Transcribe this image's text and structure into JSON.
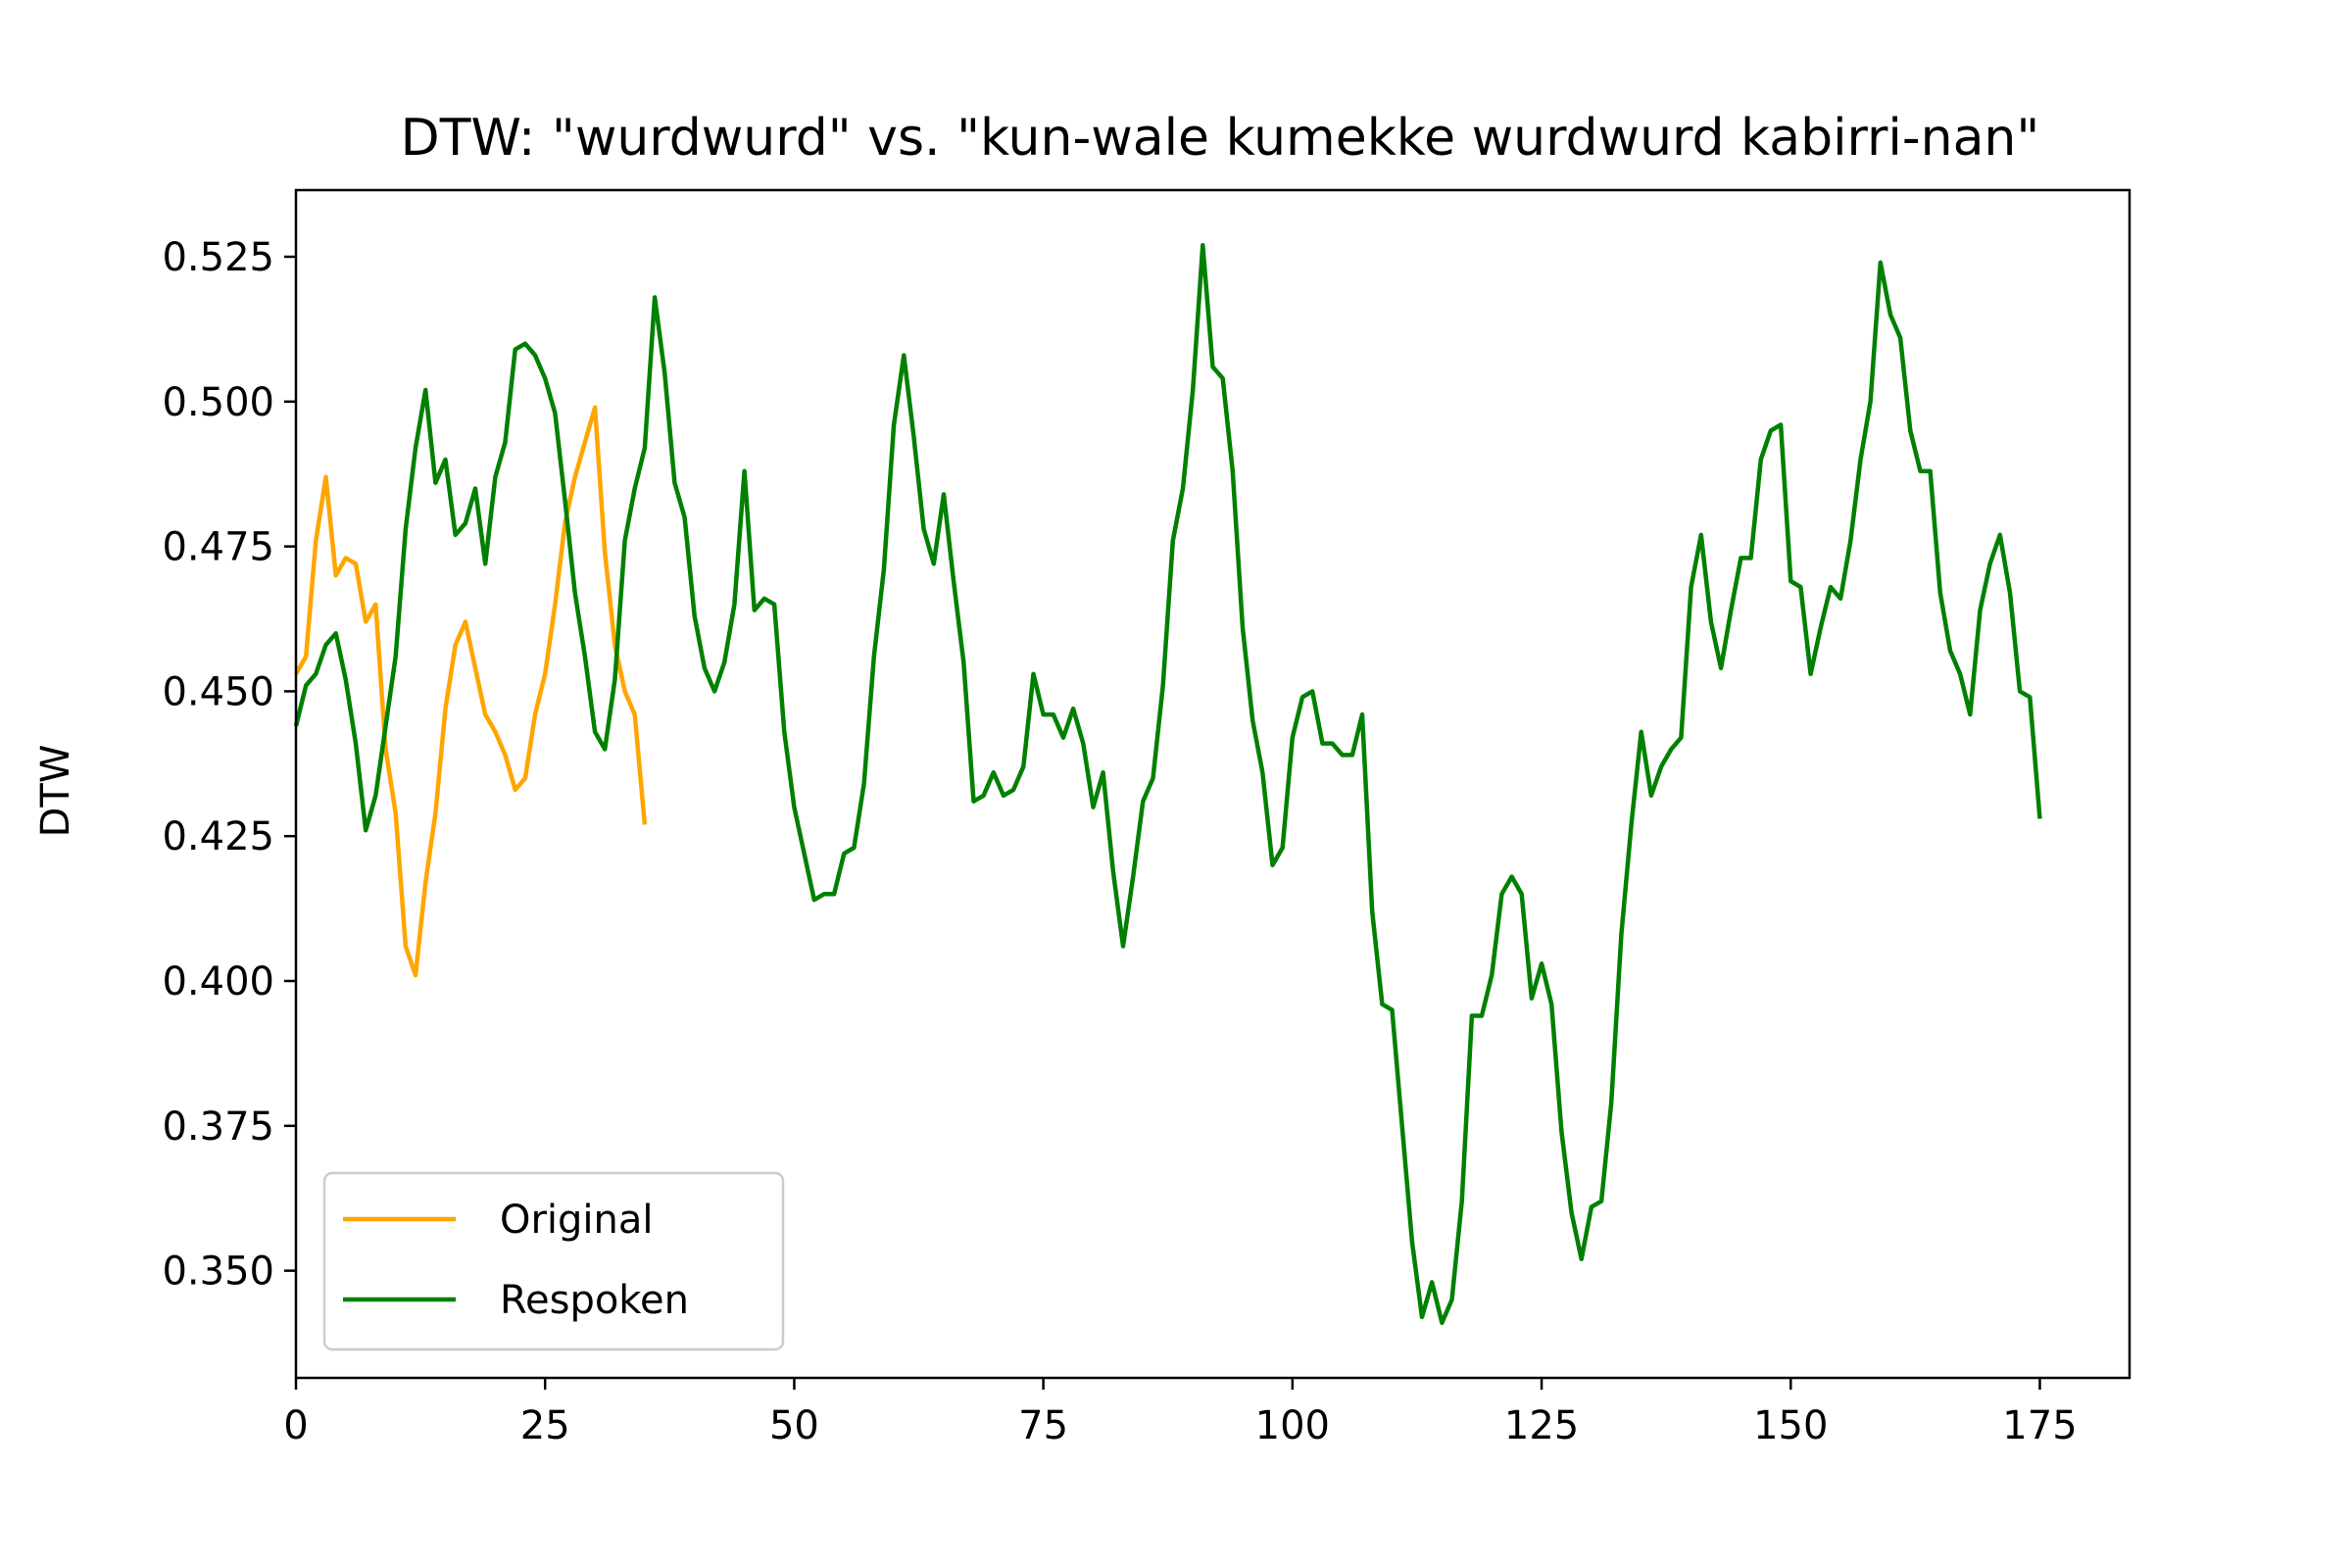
{
  "chart_data": {
    "type": "line",
    "title": "DTW: \"wurdwurd\" vs. \"kun-wale kumekke wurdwurd kabirri-nan\"",
    "xlabel": "",
    "ylabel": "DTW",
    "xlim": [
      0,
      184
    ],
    "ylim": [
      0.3315,
      0.5365
    ],
    "xticks": [
      0,
      25,
      50,
      75,
      100,
      125,
      150,
      175
    ],
    "yticks": [
      0.35,
      0.375,
      0.4,
      0.425,
      0.45,
      0.475,
      0.5,
      0.525
    ],
    "ytick_labels": [
      "0.350",
      "0.375",
      "0.400",
      "0.425",
      "0.450",
      "0.475",
      "0.500",
      "0.525"
    ],
    "grid": false,
    "legend_position": "lower-left",
    "series": [
      {
        "name": "Original",
        "color": "#ffa500",
        "values": [
          0.453,
          0.456,
          0.476,
          0.487,
          0.47,
          0.473,
          0.472,
          0.462,
          0.465,
          0.44,
          0.429,
          0.406,
          0.401,
          0.417,
          0.429,
          0.447,
          0.458,
          0.462,
          0.454,
          0.446,
          0.443,
          0.439,
          0.433,
          0.435,
          0.446,
          0.453,
          0.465,
          0.479,
          0.487,
          0.493,
          0.499,
          0.474,
          0.458,
          0.45,
          0.446,
          0.427
        ]
      },
      {
        "name": "Respoken",
        "color": "#008000",
        "values": [
          0.444,
          0.451,
          0.453,
          0.458,
          0.46,
          0.452,
          0.441,
          0.426,
          0.432,
          0.444,
          0.456,
          0.478,
          0.492,
          0.502,
          0.486,
          0.49,
          0.477,
          0.479,
          0.485,
          0.472,
          0.487,
          0.493,
          0.509,
          0.51,
          0.508,
          0.504,
          0.498,
          0.483,
          0.467,
          0.456,
          0.443,
          0.44,
          0.452,
          0.476,
          0.485,
          0.492,
          0.518,
          0.505,
          0.486,
          0.48,
          0.463,
          0.454,
          0.45,
          0.455,
          0.465,
          0.488,
          0.464,
          0.466,
          0.465,
          0.443,
          0.43,
          0.422,
          0.414,
          0.415,
          0.415,
          0.422,
          0.423,
          0.434,
          0.456,
          0.471,
          0.496,
          0.508,
          0.494,
          0.478,
          0.472,
          0.484,
          0.469,
          0.455,
          0.431,
          0.432,
          0.436,
          0.432,
          0.433,
          0.437,
          0.453,
          0.446,
          0.446,
          0.442,
          0.447,
          0.441,
          0.43,
          0.436,
          0.419,
          0.406,
          0.418,
          0.431,
          0.435,
          0.451,
          0.476,
          0.485,
          0.502,
          0.527,
          0.506,
          0.504,
          0.488,
          0.461,
          0.445,
          0.436,
          0.42,
          0.423,
          0.442,
          0.449,
          0.45,
          0.441,
          0.441,
          0.439,
          0.439,
          0.446,
          0.412,
          0.396,
          0.395,
          0.375,
          0.355,
          0.342,
          0.348,
          0.341,
          0.345,
          0.362,
          0.394,
          0.394,
          0.401,
          0.415,
          0.418,
          0.415,
          0.397,
          0.403,
          0.396,
          0.374,
          0.36,
          0.352,
          0.361,
          0.362,
          0.379,
          0.408,
          0.427,
          0.443,
          0.432,
          0.437,
          0.44,
          0.442,
          0.468,
          0.477,
          0.462,
          0.454,
          0.464,
          0.473,
          0.473,
          0.49,
          0.495,
          0.496,
          0.469,
          0.468,
          0.453,
          0.461,
          0.468,
          0.466,
          0.476,
          0.49,
          0.5,
          0.524,
          0.515,
          0.511,
          0.495,
          0.488,
          0.488,
          0.467,
          0.457,
          0.453,
          0.446,
          0.464,
          0.472,
          0.477,
          0.467,
          0.45,
          0.449,
          0.428
        ]
      }
    ]
  }
}
